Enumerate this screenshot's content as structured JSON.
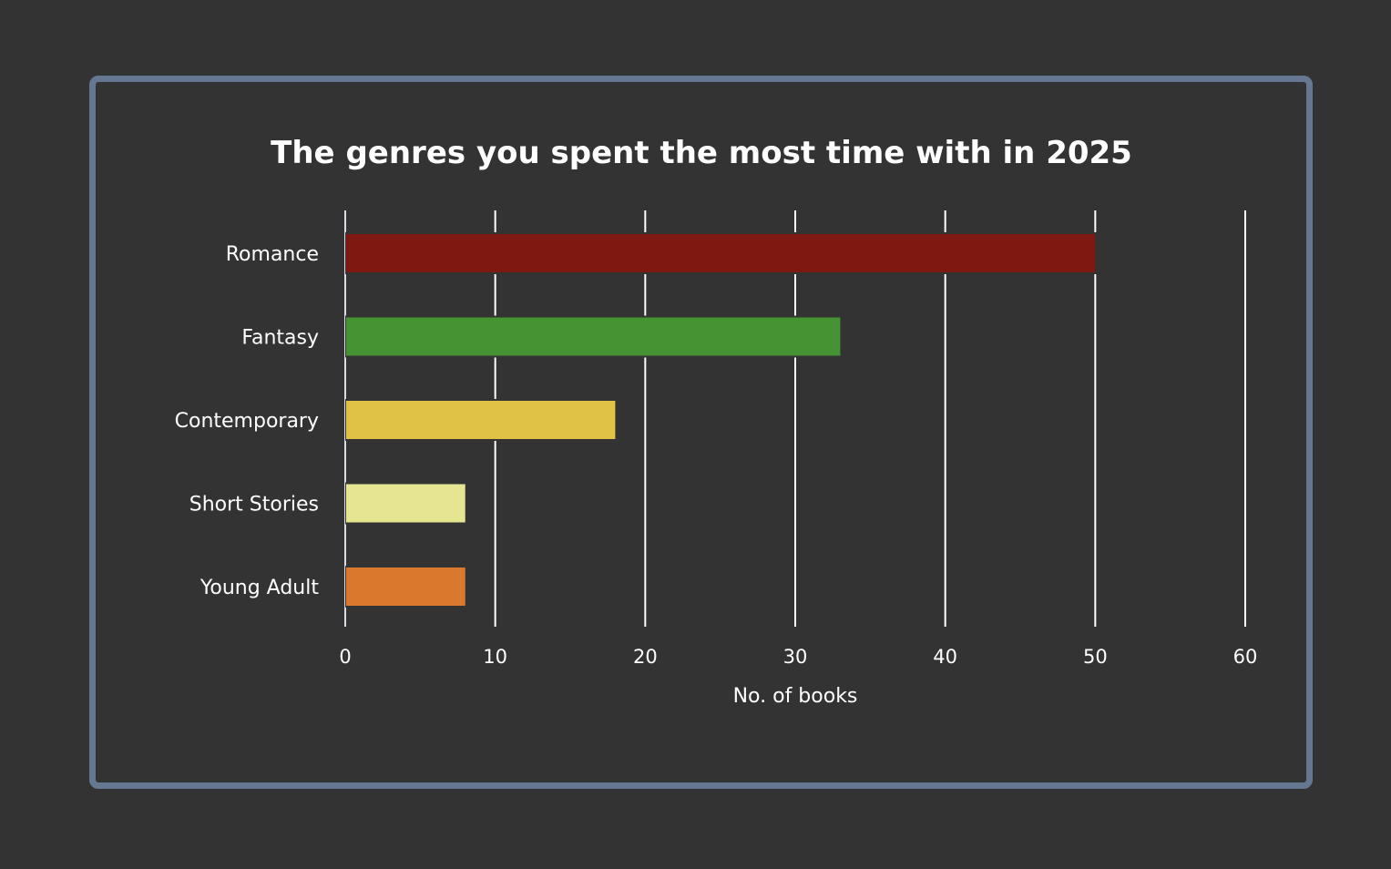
{
  "chart_data": {
    "type": "bar",
    "orientation": "horizontal",
    "title": "The genres you spent the most time with in 2025",
    "categories": [
      "Romance",
      "Fantasy",
      "Contemporary",
      "Short Stories",
      "Young Adult"
    ],
    "values": [
      50,
      33,
      18,
      8,
      8
    ],
    "colors": [
      "#7e1810",
      "#459332",
      "#e0c244",
      "#e5e592",
      "#da782e"
    ],
    "xlabel": "No. of books",
    "ylabel": "",
    "xlim": [
      0,
      60
    ],
    "xticks": [
      0,
      10,
      20,
      30,
      40,
      50,
      60
    ],
    "grid": true,
    "legend": "none"
  }
}
